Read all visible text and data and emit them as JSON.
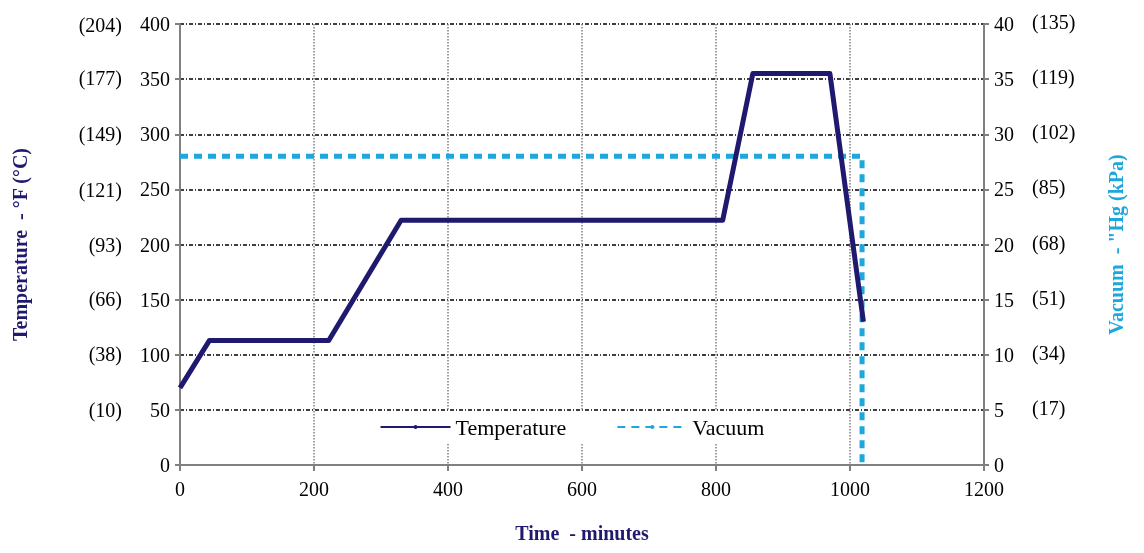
{
  "chart_data": {
    "type": "line",
    "xlabel": "Time  - minutes",
    "ylabel": "Temperature  - °F (°C)",
    "y2label": "Vacuum  - \"Hg (kPa)",
    "xlim": [
      0,
      1200
    ],
    "xticks": [
      0,
      200,
      400,
      600,
      800,
      1000,
      1200
    ],
    "ylim": [
      0,
      400
    ],
    "yticks": [
      0,
      50,
      100,
      150,
      200,
      250,
      300,
      350,
      400
    ],
    "y2lim": [
      0,
      40
    ],
    "y2ticks": [
      0,
      5,
      10,
      15,
      20,
      25,
      30,
      35,
      40
    ],
    "y3lim": [
      -17.8,
      204.4
    ],
    "y3ticks": [
      {
        "value": 10,
        "label": "(10)"
      },
      {
        "value": 38,
        "label": "(38)"
      },
      {
        "value": 66,
        "label": "(66)"
      },
      {
        "value": 93,
        "label": "(93)"
      },
      {
        "value": 121,
        "label": "(121)"
      },
      {
        "value": 149,
        "label": "(149)"
      },
      {
        "value": 177,
        "label": "(177)"
      },
      {
        "value": 204,
        "label": "(204)"
      }
    ],
    "annotations": [
      "(17)",
      "(34)",
      "(51)",
      "(68)",
      "(85)",
      "(102)",
      "(119)",
      "(135)"
    ],
    "grid": true,
    "legend": "bottom",
    "marker": "none",
    "series": [
      {
        "name": "Temperature",
        "color": "#1f1a6e",
        "line_style": "solid",
        "x": [
          0,
          44,
          222,
          330,
          810,
          855,
          970,
          1020
        ],
        "values": [
          70,
          113,
          113,
          222,
          222,
          355,
          355,
          130
        ]
      },
      {
        "name": "Vacuum",
        "color": "#1ea7dc",
        "line_style": "dashed",
        "axis": "y2",
        "x": [
          0,
          1018,
          1018
        ],
        "values": [
          28,
          28,
          0
        ]
      }
    ]
  }
}
